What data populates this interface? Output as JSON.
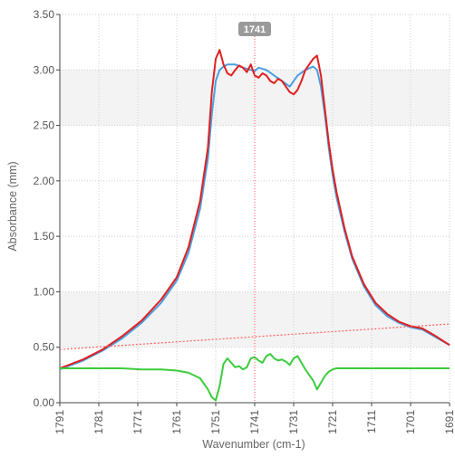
{
  "chart_data": {
    "type": "line",
    "xlabel": "Wavenumber (cm-1)",
    "ylabel": "Absorbance (mm)",
    "xlim": [
      1791,
      1691
    ],
    "x_reversed": true,
    "ylim": [
      0,
      3.5
    ],
    "x_ticks": [
      "1791",
      "1781",
      "1771",
      "1761",
      "1751",
      "1741",
      "1731",
      "1721",
      "1711",
      "1701",
      "1691"
    ],
    "y_ticks": [
      "0.00",
      "0.50",
      "1.00",
      "1.50",
      "2.00",
      "2.50",
      "3.00",
      "3.50"
    ],
    "grid": true,
    "grid_style": "dotted",
    "shaded_bands": [
      [
        0.5,
        1.0
      ],
      [
        2.5,
        3.0
      ]
    ],
    "cursor": {
      "x": 1741,
      "label": "1741"
    },
    "series": [
      {
        "color": "#4a9fe0",
        "x": [
          1791,
          1785,
          1780,
          1775,
          1770,
          1765,
          1761,
          1758,
          1755,
          1753,
          1752,
          1751,
          1750,
          1749,
          1748,
          1746,
          1744,
          1742,
          1741,
          1740,
          1738,
          1736,
          1734,
          1732,
          1730,
          1728,
          1726,
          1725,
          1724,
          1723,
          1722,
          1721,
          1720,
          1718,
          1716,
          1713,
          1710,
          1707,
          1704,
          1701,
          1698,
          1695,
          1691
        ],
        "y": [
          0.3,
          0.38,
          0.47,
          0.58,
          0.72,
          0.9,
          1.1,
          1.35,
          1.75,
          2.2,
          2.6,
          2.9,
          3.0,
          3.03,
          3.05,
          3.05,
          3.02,
          3.0,
          2.99,
          3.02,
          3.0,
          2.95,
          2.9,
          2.85,
          2.95,
          3.0,
          3.03,
          3.0,
          2.85,
          2.6,
          2.3,
          2.05,
          1.85,
          1.55,
          1.3,
          1.05,
          0.88,
          0.78,
          0.72,
          0.68,
          0.66,
          0.6,
          0.52
        ]
      },
      {
        "color": "#e02020",
        "x": [
          1791,
          1785,
          1780,
          1775,
          1770,
          1765,
          1761,
          1758,
          1755,
          1753,
          1752,
          1751,
          1750,
          1749,
          1748,
          1747,
          1746,
          1745,
          1744,
          1743,
          1742,
          1741,
          1740,
          1739,
          1738,
          1737,
          1736,
          1735,
          1734,
          1733,
          1732,
          1731,
          1730,
          1729,
          1728,
          1727,
          1726,
          1725,
          1724,
          1723,
          1722,
          1721,
          1720,
          1718,
          1716,
          1713,
          1710,
          1707,
          1704,
          1701,
          1698,
          1695,
          1691
        ],
        "y": [
          0.31,
          0.39,
          0.48,
          0.6,
          0.74,
          0.93,
          1.13,
          1.4,
          1.82,
          2.3,
          2.8,
          3.1,
          3.18,
          3.05,
          2.97,
          2.95,
          3.0,
          3.04,
          3.02,
          2.98,
          3.05,
          2.95,
          2.93,
          2.97,
          2.95,
          2.9,
          2.88,
          2.92,
          2.9,
          2.85,
          2.8,
          2.78,
          2.82,
          2.9,
          3.0,
          3.05,
          3.1,
          3.13,
          2.95,
          2.65,
          2.35,
          2.1,
          1.9,
          1.58,
          1.32,
          1.07,
          0.9,
          0.8,
          0.73,
          0.69,
          0.67,
          0.61,
          0.52
        ]
      },
      {
        "color": "#3ccc3c",
        "x": [
          1791,
          1785,
          1780,
          1775,
          1770,
          1765,
          1761,
          1758,
          1755,
          1753,
          1752,
          1751,
          1750,
          1749,
          1748,
          1747,
          1746,
          1745,
          1744,
          1743,
          1742,
          1741,
          1740,
          1739,
          1738,
          1737,
          1736,
          1735,
          1734,
          1733,
          1732,
          1731,
          1730,
          1729,
          1728,
          1727,
          1726,
          1725,
          1724,
          1723,
          1722,
          1721,
          1720,
          1718,
          1716,
          1713,
          1710,
          1707,
          1704,
          1701,
          1698,
          1695,
          1691
        ],
        "y": [
          0.31,
          0.31,
          0.31,
          0.31,
          0.3,
          0.3,
          0.29,
          0.27,
          0.22,
          0.12,
          0.05,
          0.02,
          0.15,
          0.35,
          0.4,
          0.36,
          0.32,
          0.33,
          0.3,
          0.32,
          0.4,
          0.41,
          0.38,
          0.36,
          0.42,
          0.44,
          0.4,
          0.38,
          0.39,
          0.37,
          0.34,
          0.4,
          0.42,
          0.36,
          0.3,
          0.25,
          0.2,
          0.12,
          0.18,
          0.24,
          0.28,
          0.3,
          0.31,
          0.31,
          0.31,
          0.31,
          0.31,
          0.31,
          0.31,
          0.31,
          0.31,
          0.31,
          0.31
        ]
      },
      {
        "color": "#ff6060",
        "dashed": true,
        "x": [
          1791,
          1691
        ],
        "y": [
          0.48,
          0.71
        ]
      }
    ]
  }
}
